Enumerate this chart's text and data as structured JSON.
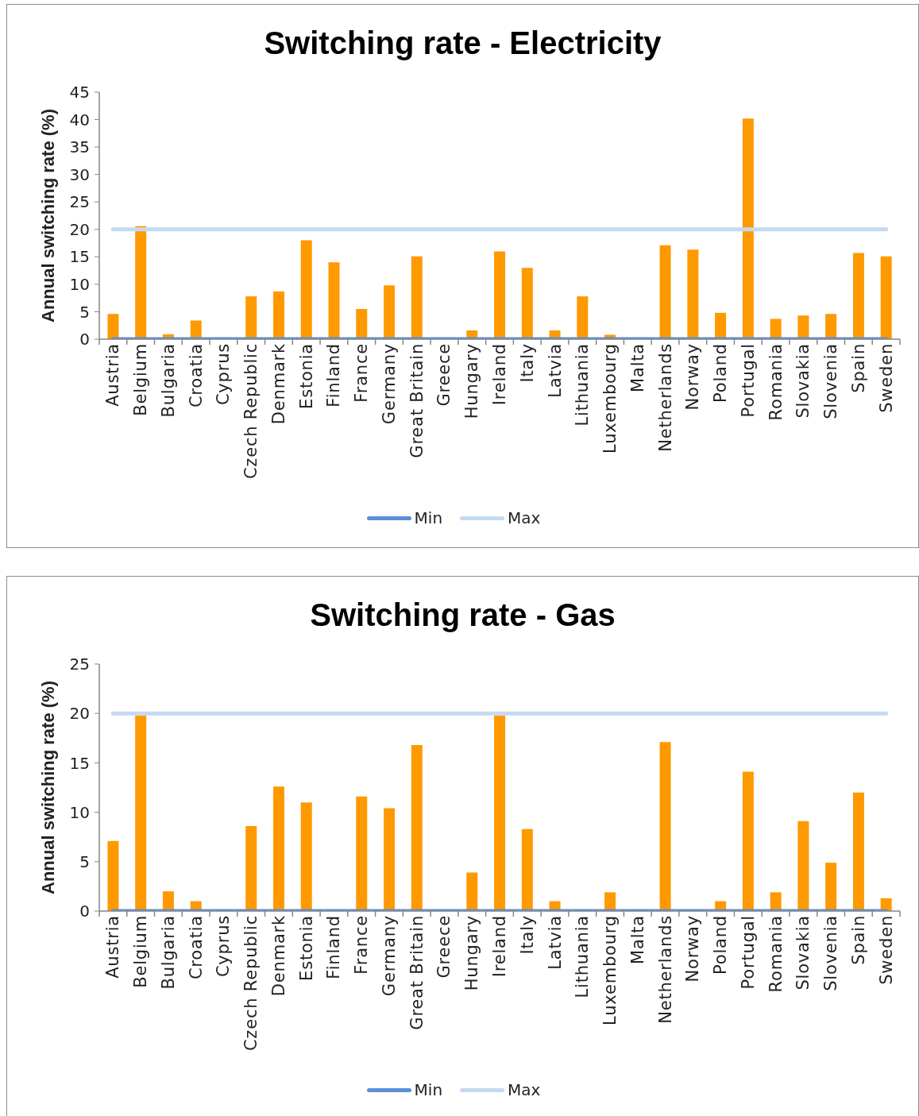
{
  "chart_data": [
    {
      "type": "bar",
      "title": "Switching rate - Electricity",
      "ylabel": "Annual switching rate (%)",
      "categories": [
        "Austria",
        "Belgium",
        "Bulgaria",
        "Croatia",
        "Cyprus",
        "Czech Republic",
        "Denmark",
        "Estonia",
        "Finland",
        "France",
        "Germany",
        "Great Britain",
        "Greece",
        "Hungary",
        "Ireland",
        "Italy",
        "Latvia",
        "Lithuania",
        "Luxembourg",
        "Malta",
        "Netherlands",
        "Norway",
        "Poland",
        "Portugal",
        "Romania",
        "Slovakia",
        "Slovenia",
        "Spain",
        "Sweden"
      ],
      "series": [
        {
          "color": "#ff9900",
          "values": [
            4.6,
            20.6,
            0.9,
            3.4,
            null,
            7.8,
            8.7,
            18.0,
            14.0,
            5.5,
            9.8,
            15.1,
            null,
            1.6,
            16.0,
            13.0,
            1.6,
            7.8,
            0.8,
            null,
            17.1,
            16.3,
            4.8,
            40.2,
            3.7,
            4.3,
            4.6,
            15.7,
            15.1
          ]
        },
        {
          "type": "line",
          "name": "Min",
          "color": "#5b8fd9",
          "values": [
            0,
            0,
            0,
            0,
            0,
            0,
            0,
            0,
            0,
            0,
            0,
            0,
            0,
            0,
            0,
            0,
            0,
            0,
            0,
            0,
            0,
            0,
            0,
            0,
            0,
            0,
            0,
            0,
            0
          ]
        },
        {
          "type": "line",
          "name": "Max",
          "color": "#c6d9f1",
          "values": [
            20,
            20,
            20,
            20,
            20,
            20,
            20,
            20,
            20,
            20,
            20,
            20,
            20,
            20,
            20,
            20,
            20,
            20,
            20,
            20,
            20,
            20,
            20,
            20,
            20,
            20,
            20,
            20,
            20
          ]
        }
      ],
      "ylim": [
        0,
        45
      ],
      "yticks": [
        0,
        5,
        10,
        15,
        20,
        25,
        30,
        35,
        40,
        45
      ],
      "legend": "bottom",
      "marker": "none",
      "line_style": "solid"
    },
    {
      "type": "bar",
      "title": "Switching rate - Gas",
      "ylabel": "Annual switching rate (%)",
      "categories": [
        "Austria",
        "Belgium",
        "Bulgaria",
        "Croatia",
        "Cyprus",
        "Czech Republic",
        "Denmark",
        "Estonia",
        "Finland",
        "France",
        "Germany",
        "Great Britain",
        "Greece",
        "Hungary",
        "Ireland",
        "Italy",
        "Latvia",
        "Lithuania",
        "Luxembourg",
        "Malta",
        "Netherlands",
        "Norway",
        "Poland",
        "Portugal",
        "Romania",
        "Slovakia",
        "Slovenia",
        "Spain",
        "Sweden"
      ],
      "series": [
        {
          "color": "#ff9900",
          "values": [
            7.1,
            19.8,
            2.0,
            1.0,
            null,
            8.6,
            12.6,
            11.0,
            null,
            11.6,
            10.4,
            16.8,
            null,
            3.9,
            19.8,
            8.3,
            1.0,
            null,
            1.9,
            null,
            17.1,
            null,
            1.0,
            14.1,
            1.9,
            9.1,
            4.9,
            12.0,
            1.3
          ]
        },
        {
          "type": "line",
          "name": "Min",
          "color": "#5b8fd9",
          "values": [
            0,
            0,
            0,
            0,
            0,
            0,
            0,
            0,
            0,
            0,
            0,
            0,
            0,
            0,
            0,
            0,
            0,
            0,
            0,
            0,
            0,
            0,
            0,
            0,
            0,
            0,
            0,
            0,
            0
          ]
        },
        {
          "type": "line",
          "name": "Max",
          "color": "#c6d9f1",
          "values": [
            20,
            20,
            20,
            20,
            20,
            20,
            20,
            20,
            20,
            20,
            20,
            20,
            20,
            20,
            20,
            20,
            20,
            20,
            20,
            20,
            20,
            20,
            20,
            20,
            20,
            20,
            20,
            20,
            20
          ]
        }
      ],
      "ylim": [
        0,
        25
      ],
      "yticks": [
        0,
        5,
        10,
        15,
        20,
        25
      ],
      "legend": "bottom",
      "marker": "none",
      "line_style": "solid"
    }
  ]
}
